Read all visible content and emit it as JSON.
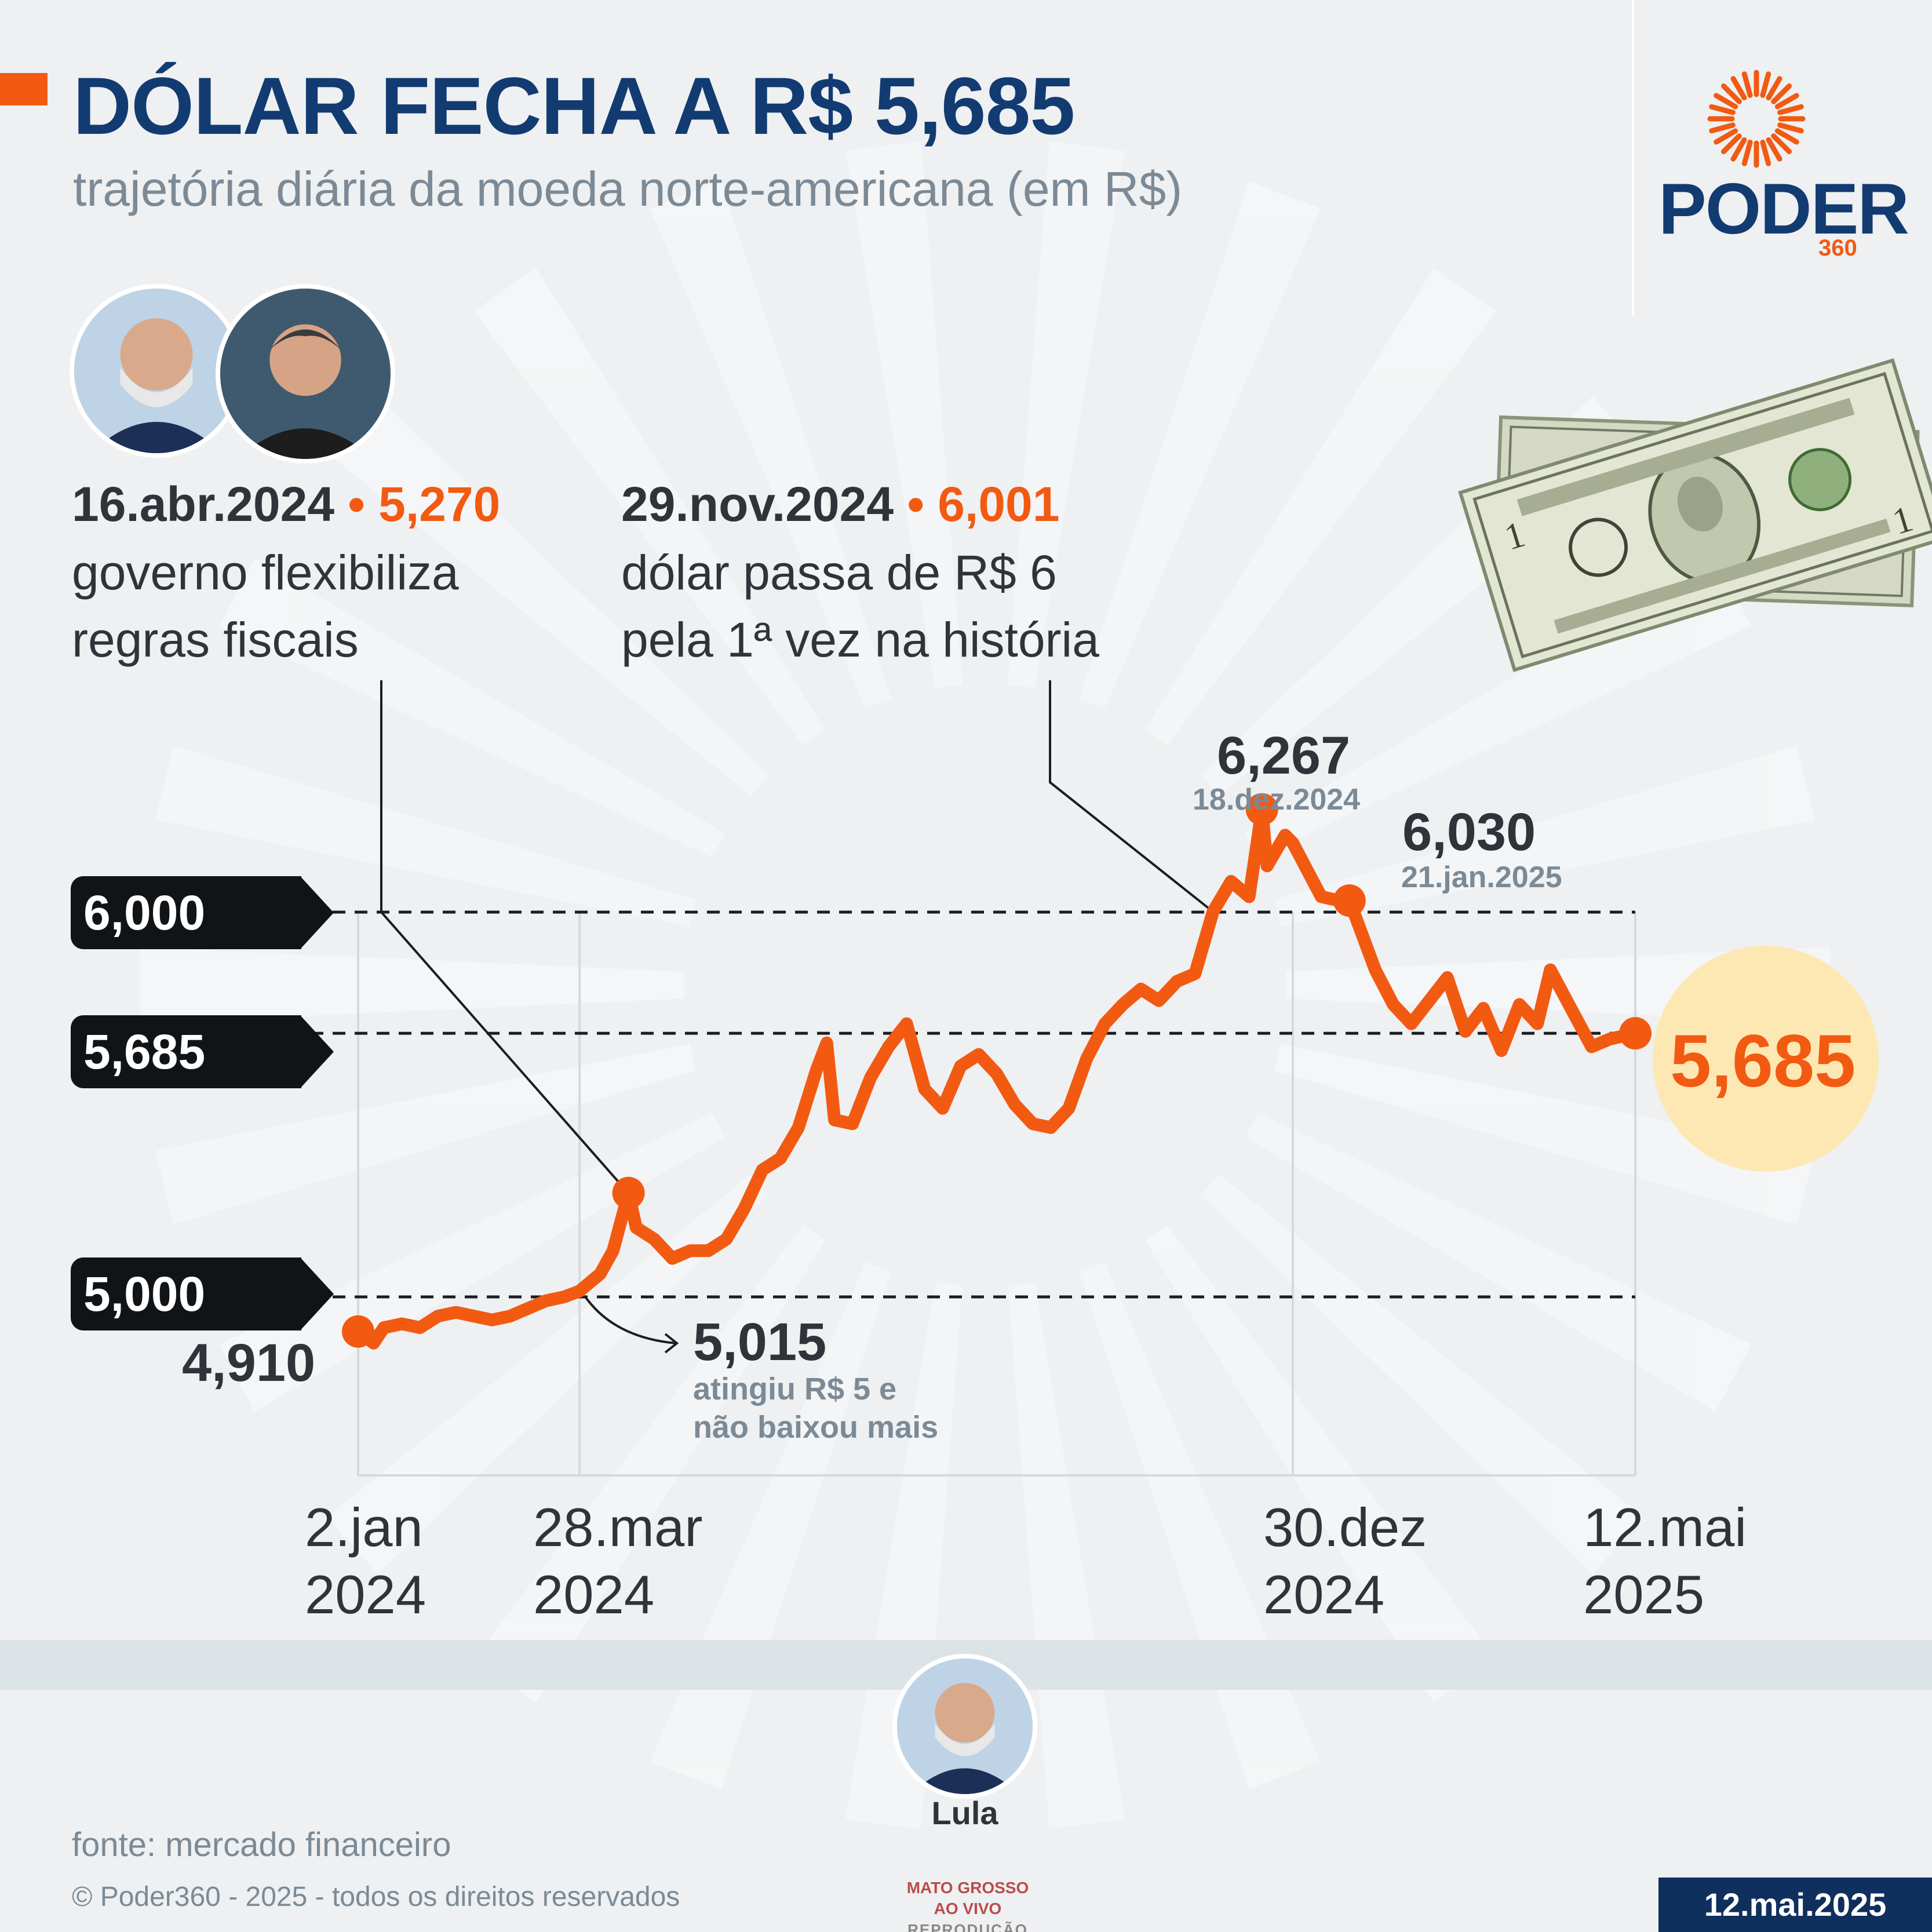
{
  "header": {
    "title": "DÓLAR FECHA A R$ 5,685",
    "subtitle": "trajetória diária da moeda norte-americana (em R$)"
  },
  "brand": {
    "name": "PODER",
    "suffix": "360"
  },
  "colors": {
    "accent": "#f25a12",
    "navy": "#123b72",
    "gray_text": "#7b8a96",
    "dark_text": "#2f343a",
    "highlight": "#fde8b4",
    "pill": "#111417"
  },
  "annotations": [
    {
      "date": "16.abr.2024",
      "value": "5,270",
      "line1": "governo flexibiliza",
      "line2": "regras fiscais"
    },
    {
      "date": "29.nov.2024",
      "value": "6,001",
      "line1": "dólar passa de R$ 6",
      "line2": "pela 1ª vez na história"
    }
  ],
  "bullet": "•",
  "reference_labels": [
    "6,000",
    "5,685",
    "5,000"
  ],
  "points": {
    "start_value": "4,910",
    "min": {
      "value": "5,015",
      "note1": "atingiu R$ 5 e",
      "note2": "não baixou mais"
    },
    "peak": {
      "value": "6,267",
      "date": "18.dez.2024"
    },
    "second": {
      "value": "6,030",
      "date": "21.jan.2025"
    },
    "last": "5,685"
  },
  "x_ticks": [
    {
      "line1": "2.jan",
      "line2": "2024"
    },
    {
      "line1": "28.mar",
      "line2": "2024"
    },
    {
      "line1": "30.dez",
      "line2": "2024"
    },
    {
      "line1": "12.mai",
      "line2": "2025"
    }
  ],
  "people": {
    "lula": "Lula"
  },
  "footer": {
    "source": "fonte: mercado financeiro",
    "copyright": "© Poder360 - 2025 - todos os direitos reservados",
    "date": "12.mai.2025"
  },
  "watermark": {
    "line1": "MATO GROSSO AO VIVO",
    "line2": "REPRODUÇÃO"
  },
  "chart_data": {
    "type": "line",
    "x_range": [
      "2024-01-02",
      "2025-05-12"
    ],
    "ylim": [
      4.75,
      6.35
    ],
    "reference_lines": [
      6.0,
      5.685,
      5.0
    ],
    "grid": false,
    "series": [
      {
        "x": [
          "2024-01-02",
          "2024-01-08",
          "2024-01-12",
          "2024-01-19",
          "2024-01-26",
          "2024-02-02",
          "2024-02-09",
          "2024-02-16",
          "2024-02-23",
          "2024-03-01",
          "2024-03-08",
          "2024-03-15",
          "2024-03-22",
          "2024-03-28",
          "2024-04-05",
          "2024-04-10",
          "2024-04-16",
          "2024-04-19",
          "2024-04-26",
          "2024-05-03",
          "2024-05-10",
          "2024-05-17",
          "2024-05-24",
          "2024-05-31",
          "2024-06-07",
          "2024-06-14",
          "2024-06-21",
          "2024-06-28",
          "2024-07-02",
          "2024-07-05",
          "2024-07-12",
          "2024-07-19",
          "2024-07-26",
          "2024-08-02",
          "2024-08-09",
          "2024-08-16",
          "2024-08-23",
          "2024-08-30",
          "2024-09-06",
          "2024-09-13",
          "2024-09-20",
          "2024-09-27",
          "2024-10-04",
          "2024-10-11",
          "2024-10-18",
          "2024-10-25",
          "2024-11-01",
          "2024-11-08",
          "2024-11-15",
          "2024-11-22",
          "2024-11-29",
          "2024-12-06",
          "2024-12-13",
          "2024-12-18",
          "2024-12-20",
          "2024-12-27",
          "2024-12-30",
          "2025-01-10",
          "2025-01-17",
          "2025-01-21",
          "2025-01-31",
          "2025-02-07",
          "2025-02-14",
          "2025-02-21",
          "2025-02-28",
          "2025-03-07",
          "2025-03-14",
          "2025-03-21",
          "2025-03-28",
          "2025-04-04",
          "2025-04-09",
          "2025-04-17",
          "2025-04-25",
          "2025-05-02",
          "2025-05-12"
        ],
        "values": [
          4.91,
          4.88,
          4.92,
          4.93,
          4.92,
          4.95,
          4.96,
          4.95,
          4.94,
          4.95,
          4.97,
          4.99,
          5.0,
          5.015,
          5.06,
          5.12,
          5.27,
          5.18,
          5.15,
          5.1,
          5.12,
          5.12,
          5.15,
          5.23,
          5.33,
          5.36,
          5.44,
          5.59,
          5.66,
          5.46,
          5.45,
          5.57,
          5.65,
          5.71,
          5.54,
          5.49,
          5.6,
          5.63,
          5.58,
          5.5,
          5.45,
          5.44,
          5.49,
          5.62,
          5.71,
          5.76,
          5.8,
          5.77,
          5.82,
          5.84,
          6.001,
          6.08,
          6.04,
          6.267,
          6.12,
          6.2,
          6.18,
          6.04,
          6.03,
          6.03,
          5.85,
          5.76,
          5.71,
          5.77,
          5.83,
          5.69,
          5.75,
          5.64,
          5.76,
          5.71,
          5.85,
          5.75,
          5.65,
          5.67,
          5.685
        ]
      }
    ]
  }
}
